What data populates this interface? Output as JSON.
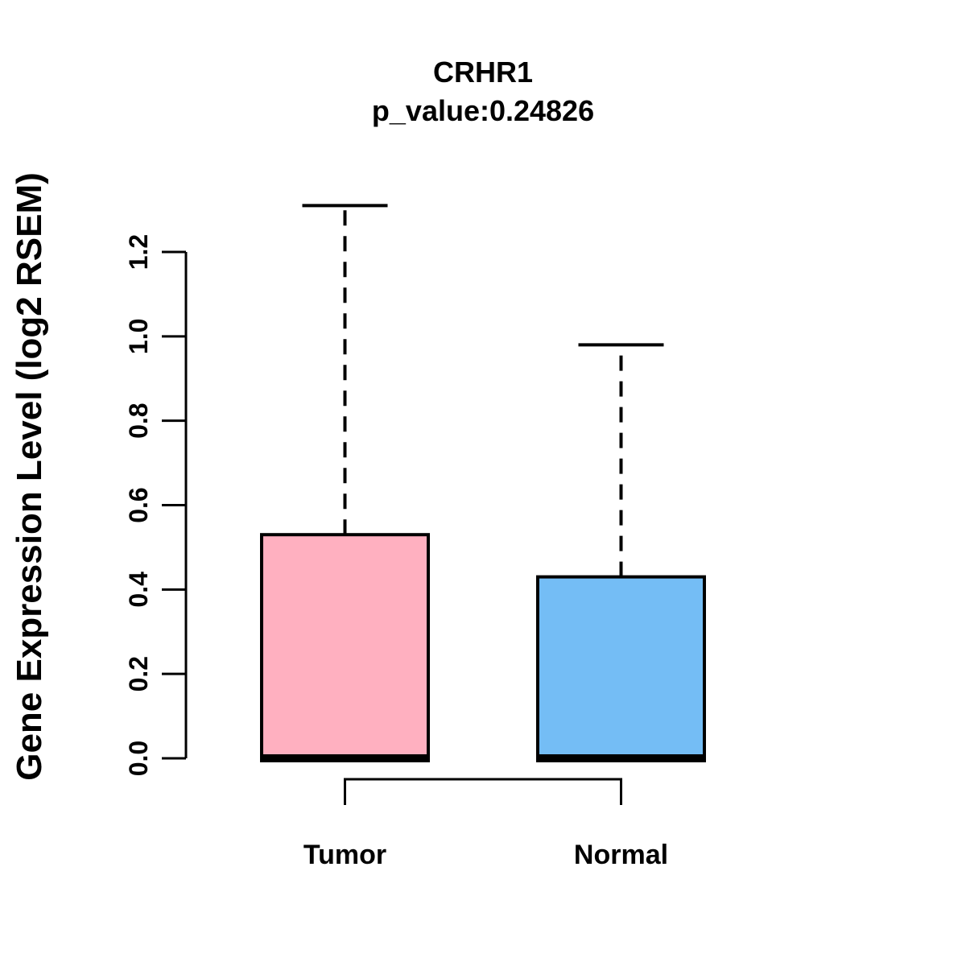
{
  "header": {
    "title": "CRHR1",
    "subtitle": "p_value:0.24826"
  },
  "chart_data": {
    "type": "boxplot",
    "title": "CRHR1",
    "subtitle": "p_value:0.24826",
    "xlabel": "",
    "ylabel": "Gene Expression Level (log2 RSEM)",
    "categories": [
      "Tumor",
      "Normal"
    ],
    "y_ticks": [
      0.0,
      0.2,
      0.4,
      0.6,
      0.8,
      1.0,
      1.2
    ],
    "ylim": [
      0.0,
      1.31
    ],
    "grid": false,
    "legend": "none",
    "series": [
      {
        "name": "Tumor",
        "color": "#FFB0C0",
        "lower_whisker": 0.0,
        "q1": 0.0,
        "median": 0.0,
        "q3": 0.53,
        "upper_whisker": 1.31
      },
      {
        "name": "Normal",
        "color": "#74BDF5",
        "lower_whisker": 0.0,
        "q1": 0.0,
        "median": 0.0,
        "q3": 0.43,
        "upper_whisker": 0.98
      }
    ],
    "comparison_bracket": {
      "present": true,
      "connects": [
        "Tumor",
        "Normal"
      ]
    }
  },
  "colors": {
    "tumor_fill": "#FFB0C0",
    "normal_fill": "#74BDF5",
    "line": "#000000",
    "background": "#FFFFFF",
    "text": "#000000"
  }
}
